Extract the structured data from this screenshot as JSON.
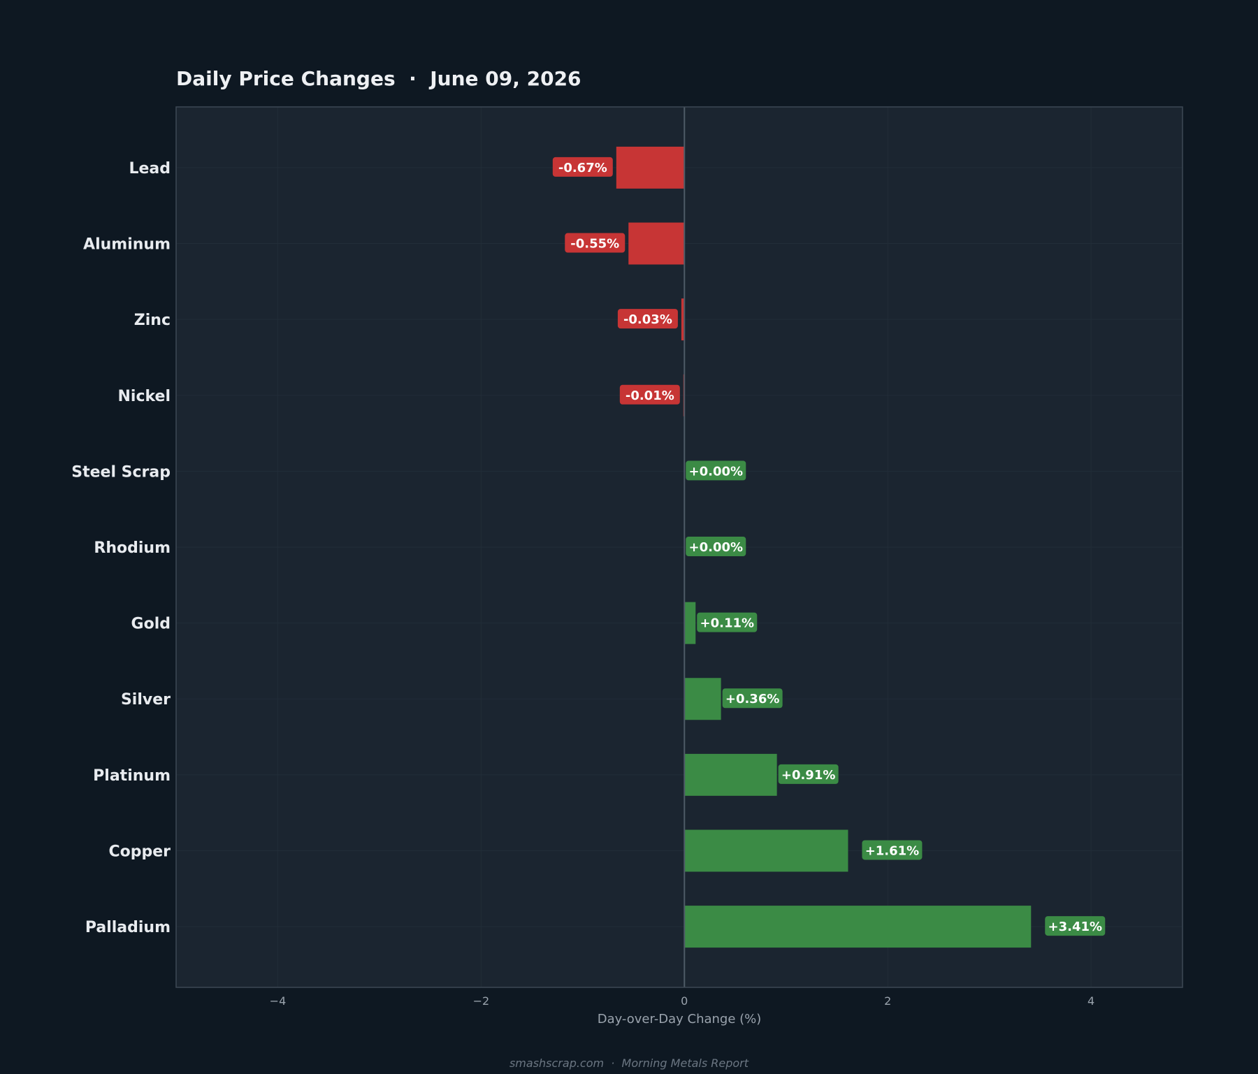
{
  "chart_data": {
    "type": "bar",
    "orientation": "horizontal",
    "title": "Daily Price Changes  ·  June 09, 2026",
    "xlabel": "Day-over-Day Change (%)",
    "ylabel": "",
    "xlim": [
      -5,
      4.9
    ],
    "xticks": [
      -4,
      -2,
      0,
      2,
      4
    ],
    "xtick_labels": [
      "−4",
      "−2",
      "0",
      "2",
      "4"
    ],
    "grid": true,
    "categories": [
      "Lead",
      "Aluminum",
      "Zinc",
      "Nickel",
      "Steel Scrap",
      "Rhodium",
      "Gold",
      "Silver",
      "Platinum",
      "Copper",
      "Palladium"
    ],
    "values": [
      -0.67,
      -0.55,
      -0.03,
      -0.01,
      0.0,
      0.0,
      0.11,
      0.36,
      0.91,
      1.61,
      3.41
    ],
    "value_labels": [
      "-0.67%",
      "-0.55%",
      "-0.03%",
      "-0.01%",
      "+0.00%",
      "+0.00%",
      "+0.11%",
      "+0.36%",
      "+0.91%",
      "+1.61%",
      "+3.41%"
    ],
    "colors": {
      "negative": "#c73535",
      "positive": "#3b8b45",
      "plot_background": "#1b2530",
      "page_background": "#0e1822",
      "zero_line": "#4f5b67",
      "frame": "#3d4854"
    }
  },
  "footer": "smashscrap.com  ·  Morning Metals Report"
}
